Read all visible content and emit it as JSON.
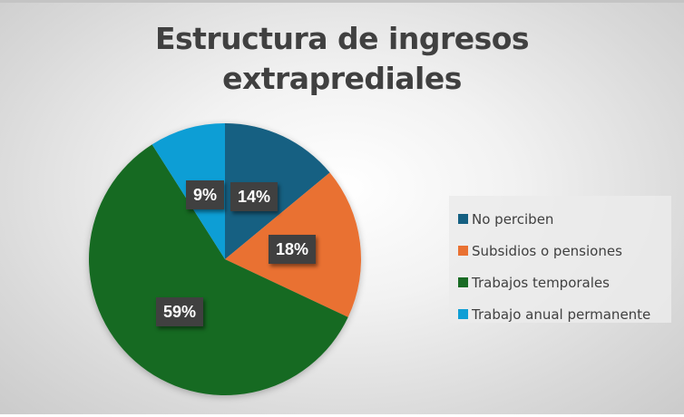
{
  "chart_data": {
    "type": "pie",
    "title": "Estructura de ingresos extraprediales",
    "categories": [
      "No perciben",
      "Subsidios o pensiones",
      "Trabajos temporales",
      "Trabajo anual permanente"
    ],
    "values": [
      14,
      18,
      59,
      9
    ],
    "labels": [
      "14%",
      "18%",
      "59%",
      "9%"
    ],
    "colors": [
      "#156082",
      "#E97132",
      "#196B24",
      "#0F9ED5"
    ],
    "legend_position": "right",
    "start_angle_deg": 0,
    "direction": "clockwise"
  },
  "title": {
    "line1": "Estructura de ingresos",
    "line2": "extraprediales"
  },
  "legend": {
    "items": [
      {
        "label": "No perciben",
        "color": "#156082"
      },
      {
        "label": "Subsidios o pensiones",
        "color": "#E97132"
      },
      {
        "label": "Trabajos temporales",
        "color": "#196B24"
      },
      {
        "label": "Trabajo anual permanente",
        "color": "#0F9ED5"
      }
    ]
  },
  "data_labels": {
    "no_perciben": "14%",
    "subsidios": "18%",
    "temporales": "59%",
    "permanente": "9%"
  }
}
